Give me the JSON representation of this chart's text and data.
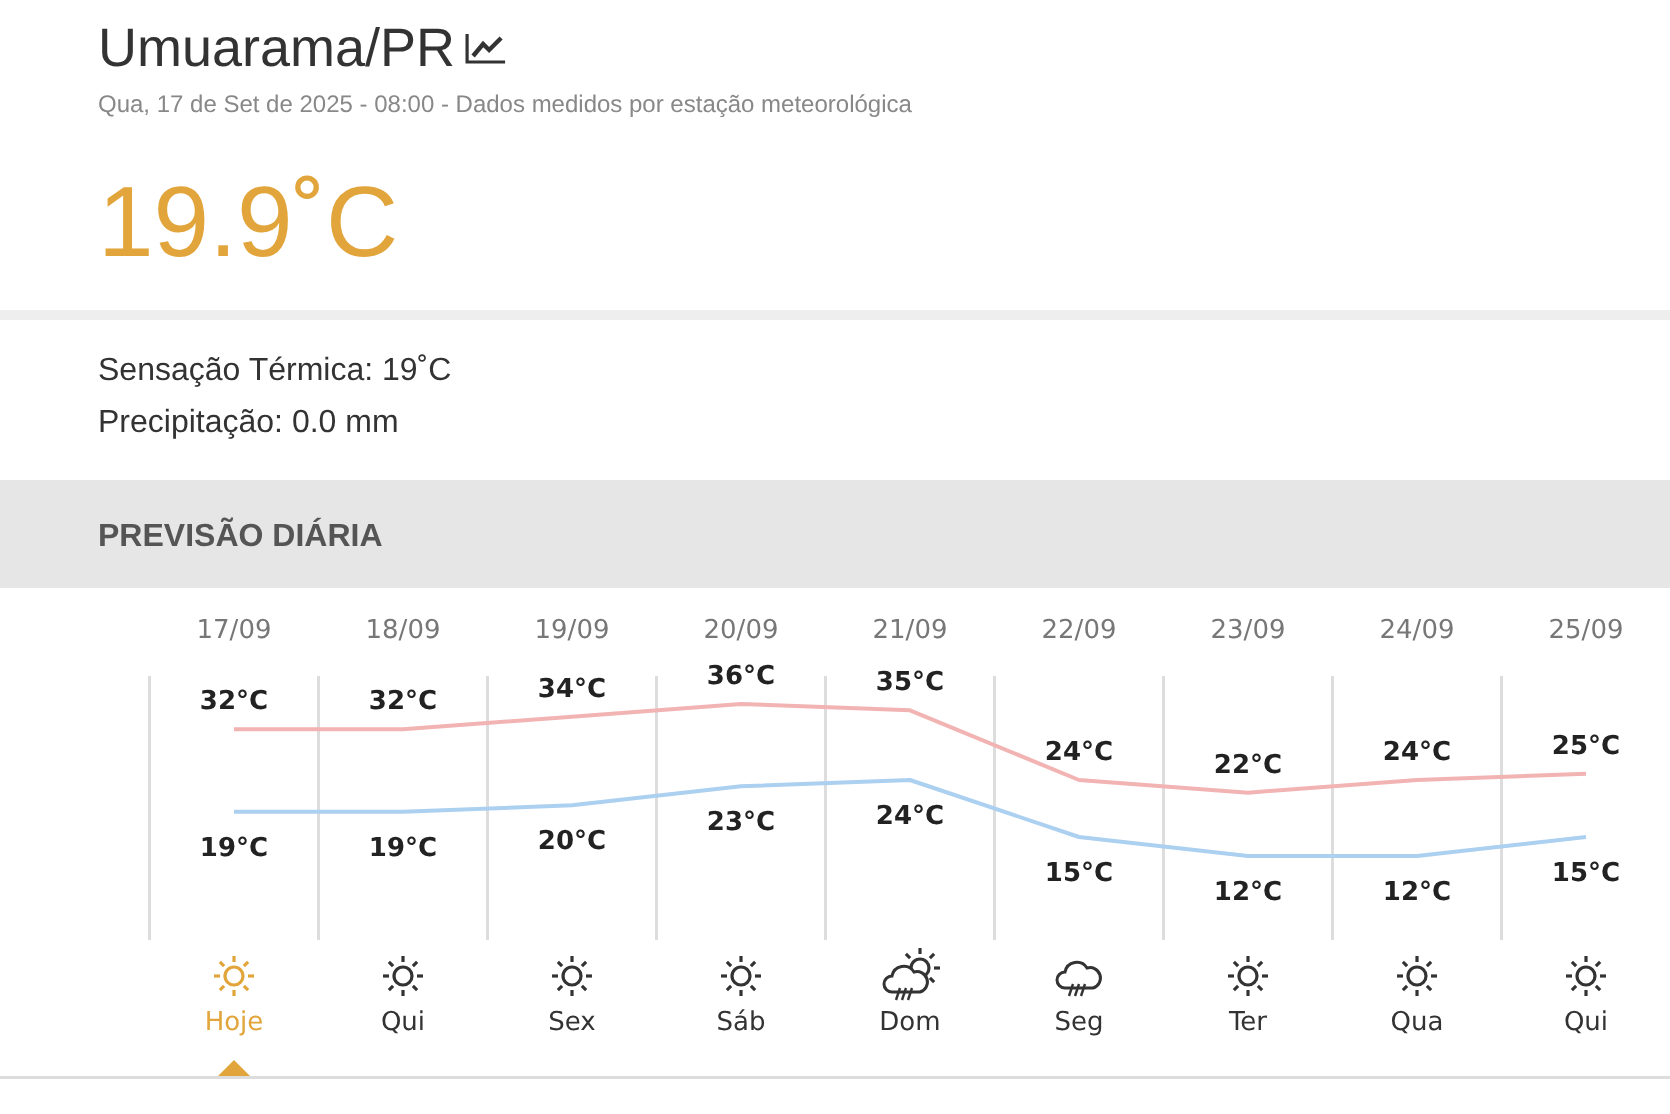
{
  "chart_data": {
    "type": "line",
    "title": "Umuarama/PR",
    "subtitle": "Qua, 17 de Set de 2025 - 08:00 - Dados medidos por estação meteorológica",
    "annotations": [
      "19.9˚C",
      "Sensação Térmica: 19˚C",
      "Precipitação: 0.0 mm",
      "PREVISÃO DIÁRIA",
      "Hoje",
      "Qui",
      "Sex",
      "Sáb",
      "Dom",
      "Seg",
      "Ter",
      "Qua",
      "Qui"
    ],
    "categories": [
      "17/09",
      "18/09",
      "19/09",
      "20/09",
      "21/09",
      "22/09",
      "23/09",
      "24/09",
      "25/09"
    ],
    "series": [
      {
        "color": "#f2b3b3",
        "values": [
          32,
          32,
          34,
          36,
          35,
          24,
          22,
          24,
          25
        ],
        "value_labels": [
          "32°C",
          "32°C",
          "34°C",
          "36°C",
          "35°C",
          "24°C",
          "22°C",
          "24°C",
          "25°C"
        ]
      },
      {
        "color": "#acd0f0",
        "values": [
          19,
          19,
          20,
          23,
          24,
          15,
          12,
          12,
          15
        ],
        "value_labels": [
          "19°C",
          "19°C",
          "20°C",
          "23°C",
          "24°C",
          "15°C",
          "12°C",
          "12°C",
          "15°C"
        ]
      }
    ],
    "grid": "x",
    "marker": "none",
    "line_style": "solid"
  }
}
